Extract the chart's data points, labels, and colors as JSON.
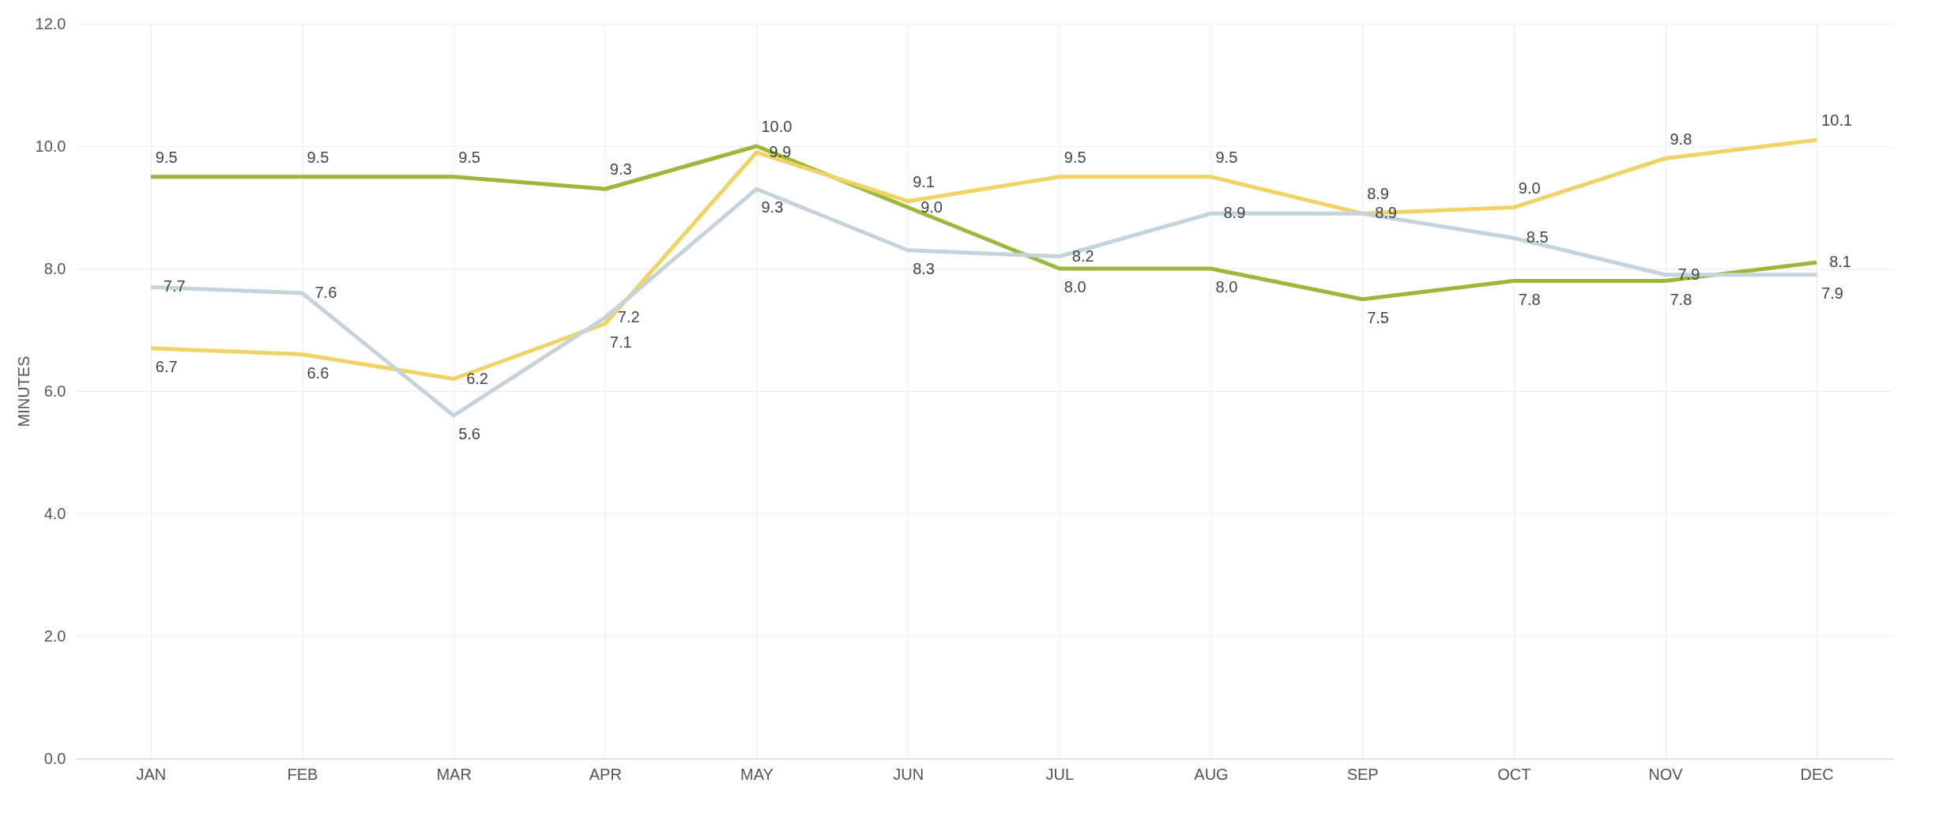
{
  "chart_data": {
    "type": "line",
    "ylabel": "MINUTES",
    "categories": [
      "JAN",
      "FEB",
      "MAR",
      "APR",
      "MAY",
      "JUN",
      "JUL",
      "AUG",
      "SEP",
      "OCT",
      "NOV",
      "DEC"
    ],
    "series": [
      {
        "color": "#9bb83a",
        "values": [
          9.5,
          9.5,
          9.5,
          9.3,
          10.0,
          9.0,
          8.0,
          8.0,
          7.5,
          7.8,
          7.8,
          8.1
        ],
        "value_labels": [
          "9.5",
          "9.5",
          "9.5",
          "9.3",
          "10.0",
          "9.0",
          "8.0",
          "8.0",
          "7.5",
          "7.8",
          "7.8",
          "8.1"
        ]
      },
      {
        "color": "#f0d265",
        "values": [
          6.7,
          6.6,
          6.2,
          7.1,
          9.9,
          9.1,
          9.5,
          9.5,
          8.9,
          9.0,
          9.8,
          10.1
        ],
        "value_labels": [
          "6.7",
          "6.6",
          "6.2",
          "7.1",
          "9.9",
          "9.1",
          "9.5",
          "9.5",
          "8.9",
          "9.0",
          "9.8",
          "10.1"
        ]
      },
      {
        "color": "#c5d3dc",
        "values": [
          7.7,
          7.6,
          5.6,
          7.2,
          9.3,
          8.3,
          8.2,
          8.9,
          8.9,
          8.5,
          7.9,
          7.9
        ],
        "value_labels": [
          "7.7",
          "7.6",
          "5.6",
          "7.2",
          "9.3",
          "8.3",
          "8.2",
          "8.9",
          "8.9",
          "8.5",
          "7.9",
          "7.9"
        ]
      }
    ],
    "ylim": [
      0,
      12
    ],
    "yticks": [
      {
        "value": 0,
        "label": "0.0"
      },
      {
        "value": 2,
        "label": "2.0"
      },
      {
        "value": 4,
        "label": "4.0"
      },
      {
        "value": 6,
        "label": "6.0"
      },
      {
        "value": 8,
        "label": "8.0"
      },
      {
        "value": 10,
        "label": "10.0"
      },
      {
        "value": 12,
        "label": "12.0"
      }
    ],
    "grid": true,
    "marker": "none",
    "line_style": "solid"
  }
}
